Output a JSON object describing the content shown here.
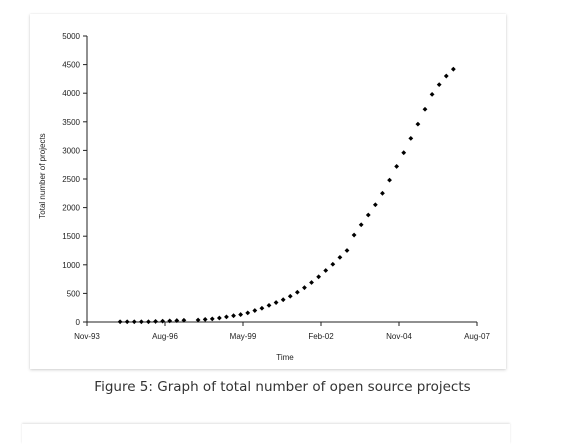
{
  "caption": "Figure 5: Graph of total number of open source projects",
  "chart_data": {
    "type": "scatter",
    "title": "",
    "xlabel": "Time",
    "ylabel": "Total number of projects",
    "x_ticks": [
      "Nov-93",
      "Aug-96",
      "May-99",
      "Feb-02",
      "Nov-04",
      "Aug-07"
    ],
    "y_ticks": [
      "0",
      "500",
      "1000",
      "1500",
      "2000",
      "2500",
      "3000",
      "3500",
      "4000",
      "4500",
      "5000"
    ],
    "xlim": [
      "1993-11",
      "2007-08"
    ],
    "ylim": [
      0,
      5000
    ],
    "marker_color": "#000000",
    "series": [
      {
        "x": [
          "1995-01",
          "1995-04",
          "1995-07",
          "1995-10",
          "1996-01",
          "1996-04",
          "1996-07",
          "1996-10",
          "1997-01",
          "1997-04",
          "1997-10",
          "1998-01",
          "1998-04",
          "1998-07",
          "1998-10",
          "1999-01",
          "1999-04",
          "1999-07",
          "1999-10",
          "2000-01",
          "2000-04",
          "2000-07",
          "2000-10",
          "2001-01",
          "2001-04",
          "2001-07",
          "2001-10",
          "2002-01",
          "2002-04",
          "2002-07",
          "2002-10",
          "2003-01",
          "2003-04",
          "2003-07",
          "2003-10",
          "2004-01",
          "2004-04",
          "2004-07",
          "2004-10",
          "2005-01",
          "2005-04",
          "2005-07",
          "2005-10",
          "2006-01",
          "2006-04",
          "2006-07",
          "2006-10"
        ],
        "y": [
          5,
          5,
          5,
          5,
          5,
          10,
          15,
          20,
          25,
          30,
          35,
          45,
          55,
          70,
          90,
          110,
          130,
          160,
          200,
          240,
          290,
          340,
          390,
          450,
          520,
          600,
          690,
          790,
          900,
          1010,
          1130,
          1250,
          1520,
          1700,
          1870,
          2050,
          2250,
          2480,
          2720,
          2960,
          3210,
          3460,
          3720,
          3980,
          4150,
          4300,
          4420
        ]
      }
    ]
  }
}
